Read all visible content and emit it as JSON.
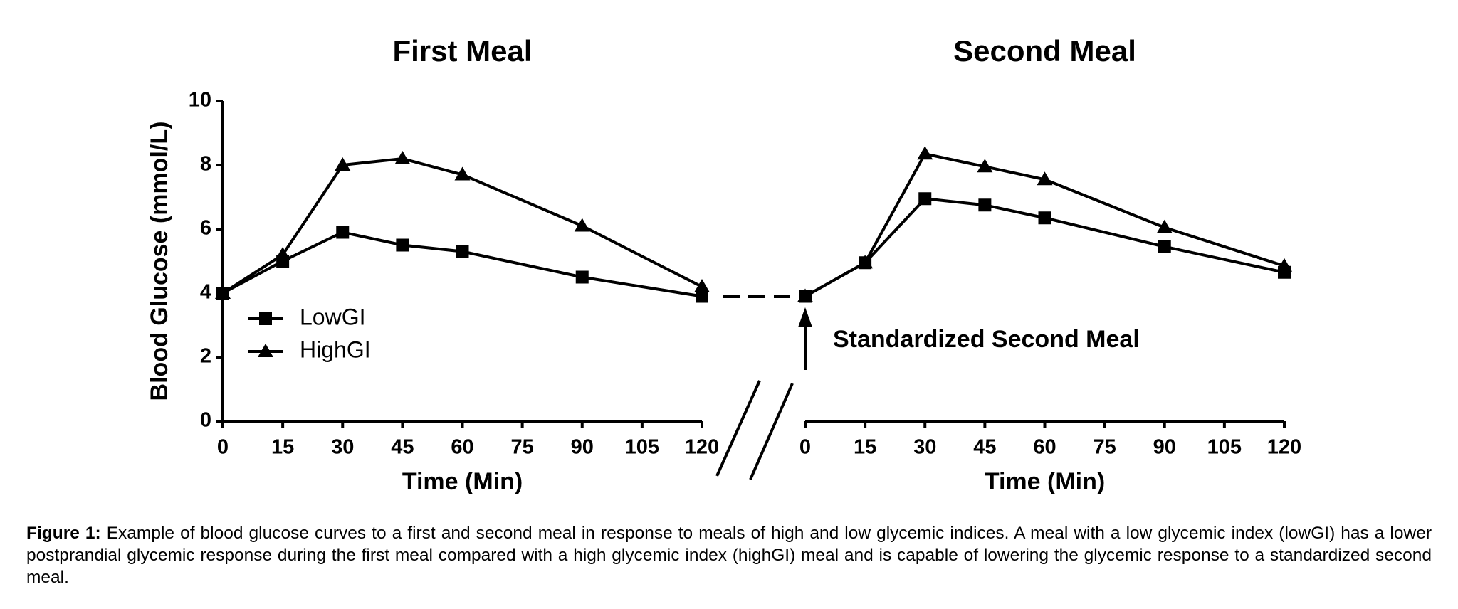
{
  "chart_data": [
    {
      "type": "line",
      "title": "First Meal",
      "xlabel": "Time (Min)",
      "ylabel": "Blood  Glucose (mmol/L)",
      "x": [
        0,
        15,
        30,
        45,
        60,
        90,
        120
      ],
      "xlim": [
        0,
        120
      ],
      "xticks": [
        0,
        15,
        30,
        45,
        60,
        75,
        90,
        105,
        120
      ],
      "ylim": [
        0,
        10
      ],
      "yticks": [
        0,
        2,
        4,
        6,
        8,
        10
      ],
      "legend": "lower left",
      "series": [
        {
          "name": "LowGI",
          "color": "#000000",
          "marker": "square",
          "values": [
            4.0,
            5.0,
            5.9,
            5.5,
            5.3,
            4.5,
            3.9
          ]
        },
        {
          "name": "HighGI",
          "color": "#000000",
          "marker": "triangle",
          "values": [
            4.0,
            5.2,
            8.0,
            8.2,
            7.7,
            6.1,
            4.2
          ]
        }
      ]
    },
    {
      "type": "line",
      "title": "Second  Meal",
      "xlabel": "Time (Min)",
      "annotation": "Standardized Second Meal",
      "x": [
        0,
        15,
        30,
        45,
        60,
        90,
        120
      ],
      "xlim": [
        0,
        120
      ],
      "xticks": [
        0,
        15,
        30,
        45,
        60,
        75,
        90,
        105,
        120
      ],
      "ylim": [
        0,
        10
      ],
      "series": [
        {
          "name": "LowGI",
          "color": "#000000",
          "marker": "square",
          "values": [
            3.9,
            4.95,
            6.95,
            6.75,
            6.35,
            5.45,
            4.65
          ]
        },
        {
          "name": "HighGI",
          "color": "#000000",
          "marker": "triangle",
          "values": [
            3.9,
            4.95,
            8.35,
            7.95,
            7.55,
            6.05,
            4.85
          ]
        }
      ]
    }
  ],
  "caption": {
    "label": "Figure 1:",
    "text": "Example of blood glucose curves to a first and second meal in response to meals of high and low glycemic indices. A meal with a low glycemic index (lowGI) has a lower postprandial glycemic response during the first meal compared with a high glycemic index (highGI) meal and is capable of lowering the glycemic response to a standardized second meal."
  }
}
